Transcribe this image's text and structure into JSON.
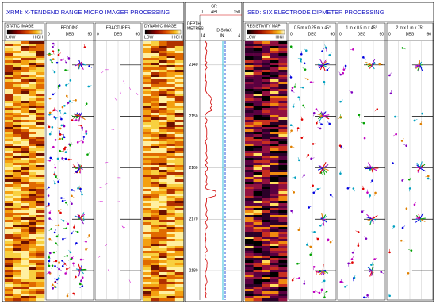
{
  "left_panel": {
    "title": "XRMI:  X-TENDEND RANGE MICRO IMAGER PROCESSING",
    "static_image": {
      "label": "STATIC IMAGE",
      "low": "LOW",
      "high": "HIGH"
    },
    "bedding": {
      "label": "BEDDING",
      "unit": "DEG",
      "min": "0",
      "max": "90"
    },
    "fractures": {
      "label": "FRACTURES",
      "unit": "DEG",
      "min": "0",
      "max": "90"
    },
    "dynamic_image": {
      "label": "DYNAMIC IMAGE",
      "low": "LOW",
      "high": "HIGH"
    }
  },
  "depth_track": {
    "gr": {
      "label": "GR",
      "min": "0",
      "unit": "API",
      "max": "150"
    },
    "depth_label": "DEPTH",
    "depth_unit": "METRES",
    "caliper": {
      "label": "DISMAX",
      "min": "14",
      "unit": "IN",
      "max": "4"
    },
    "ticks": [
      2140,
      2150,
      2160,
      2170,
      2180
    ],
    "range": [
      2135.4,
      2185.7
    ]
  },
  "right_panel": {
    "title": "SED:  SIX ELECTRODE DIPMETER PROCESSING",
    "resistivity_map": {
      "label": "RESISTIVITY MAP",
      "low": "LOW",
      "high": "HIGH"
    },
    "dip_tracks": [
      {
        "label": "0.5 m x 0.25 m x 45°",
        "unit": "DEG",
        "min": "0",
        "max": "90"
      },
      {
        "label": "1 m x 0.5 m x 45°",
        "unit": "DEG",
        "min": "0",
        "max": "90"
      },
      {
        "label": "2 m x 1 m x 75°",
        "unit": "DEG",
        "min": "0",
        "max": "90"
      }
    ]
  }
}
